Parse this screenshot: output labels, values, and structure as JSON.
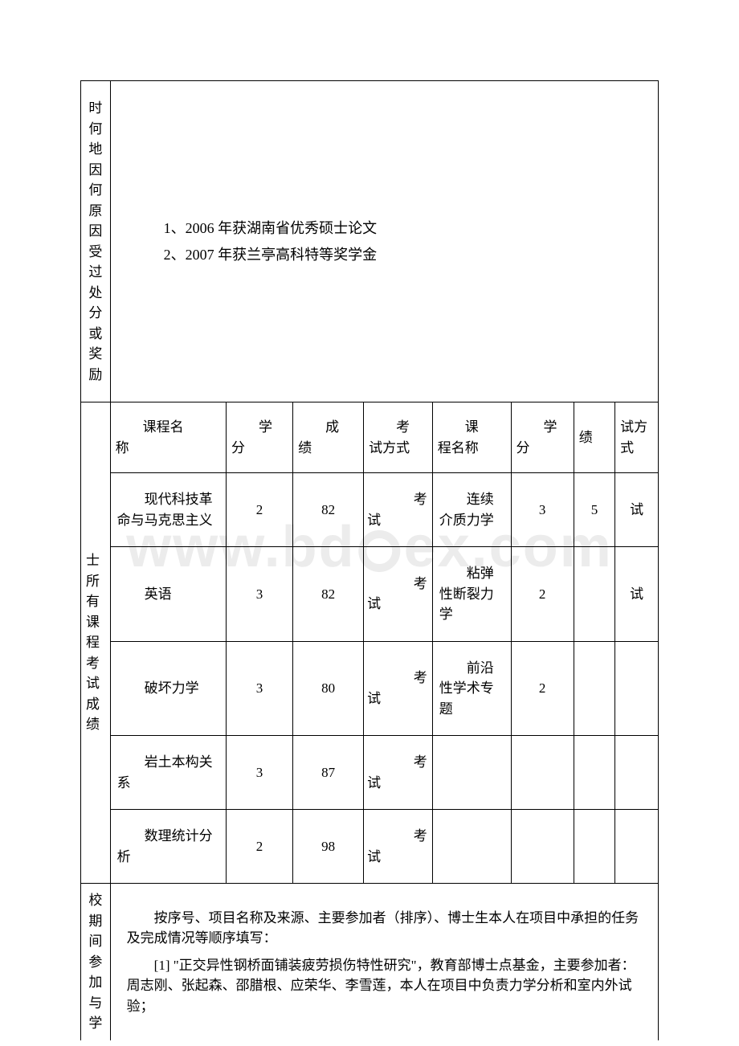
{
  "watermark_text": "www.bd",
  "watermark_suffix": "ex.com",
  "section1": {
    "side_label": "时何地因何原因受过处分或奖励",
    "awards": [
      "1、2006 年获湖南省优秀硕士论文",
      "2、2007 年获兰亭高科特等奖学金"
    ]
  },
  "section2": {
    "side_label": "士所有课程考试成绩",
    "headers": {
      "name1": "课程名称",
      "credit1": "学分",
      "score1": "成绩",
      "exam1": "考试方式",
      "name2": "课程名称",
      "credit2": "学分",
      "score2": "绩",
      "exam2": "试方式"
    },
    "rows": [
      {
        "name1": "现代科技革命与马克思主义",
        "credit1": "2",
        "score1": "82",
        "exam1": "考试",
        "name2": "连续介质力学",
        "credit2": "3",
        "score2": "5",
        "exam2": "试"
      },
      {
        "name1": "英语",
        "credit1": "3",
        "score1": "82",
        "exam1": "考试",
        "name2": "粘弹性断裂力学",
        "credit2": "2",
        "score2": "",
        "exam2": "试"
      },
      {
        "name1": "破坏力学",
        "credit1": "3",
        "score1": "80",
        "exam1": "考试",
        "name2": "前沿性学术专题",
        "credit2": "2",
        "score2": "",
        "exam2": ""
      },
      {
        "name1": "岩土本构关系",
        "credit1": "3",
        "score1": "87",
        "exam1": "考试",
        "name2": "",
        "credit2": "",
        "score2": "",
        "exam2": ""
      },
      {
        "name1": "数理统计分析",
        "credit1": "2",
        "score1": "98",
        "exam1": "考试",
        "name2": "",
        "credit2": "",
        "score2": "",
        "exam2": ""
      }
    ]
  },
  "section3": {
    "side_label": "校期间参加与学",
    "para1": "按序号、项目名称及来源、主要参加者（排序）、博士生本人在项目中承担的任务及完成情况等顺序填写：",
    "para2": "[1] \"正交异性钢桥面铺装疲劳损伤特性研究\"，教育部博士点基金，主要参加者：周志刚、张起森、邵腊根、应荣华、李雪莲，本人在项目中负责力学分析和室内外试验；"
  }
}
